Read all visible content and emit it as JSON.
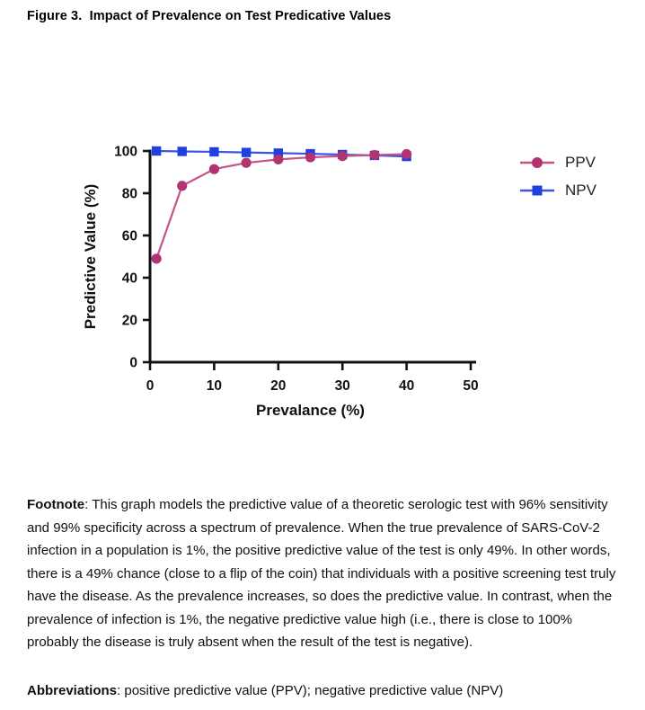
{
  "title": "Figure 3.  Impact of Prevalence on Test Predicative Values",
  "chart_data": {
    "type": "line",
    "title": "",
    "xlabel": "Prevalance (%)",
    "ylabel": "Predictive Value (%)",
    "xlim": [
      0,
      50
    ],
    "ylim": [
      0,
      100
    ],
    "x_ticks": [
      0,
      10,
      20,
      30,
      40,
      50
    ],
    "y_ticks": [
      0,
      20,
      40,
      60,
      80,
      100
    ],
    "grid": false,
    "legend_position": "right",
    "x": [
      1,
      5,
      10,
      15,
      20,
      25,
      30,
      35,
      40
    ],
    "series": [
      {
        "name": "PPV",
        "values": [
          49,
          83.5,
          91.4,
          94.4,
          96.0,
          97.0,
          97.6,
          98.1,
          98.5
        ],
        "marker": "circle",
        "marker_color": "#b23372",
        "line_color": "#c65289"
      },
      {
        "name": "NPV",
        "values": [
          100,
          99.8,
          99.6,
          99.3,
          99.0,
          98.7,
          98.3,
          97.9,
          97.4
        ],
        "marker": "square",
        "marker_color": "#1f3fe0",
        "line_color": "#3a55e6"
      }
    ],
    "axis_color": "#111111"
  },
  "legend": {
    "items": [
      {
        "label": "PPV"
      },
      {
        "label": "NPV"
      }
    ]
  },
  "footnote": {
    "label": "Footnote",
    "text": ": This graph models the predictive value of a theoretic serologic test with 96% sensitivity and 99% specificity across a spectrum of prevalence. When the true prevalence of SARS-CoV-2 infection in a population is 1%, the positive predictive value of the test is only 49%. In other words, there is a 49% chance (close to a flip of the coin) that individuals with a positive screening test truly have the disease. As the prevalence increases, so does the predictive value. In contrast, when the prevalence of infection is 1%, the negative predictive value high (i.e., there is close to 100% probably the disease is truly absent when the result of the test is negative)."
  },
  "abbreviations": {
    "label": "Abbreviations",
    "text": ": positive predictive value (PPV); negative predictive value (NPV)"
  }
}
